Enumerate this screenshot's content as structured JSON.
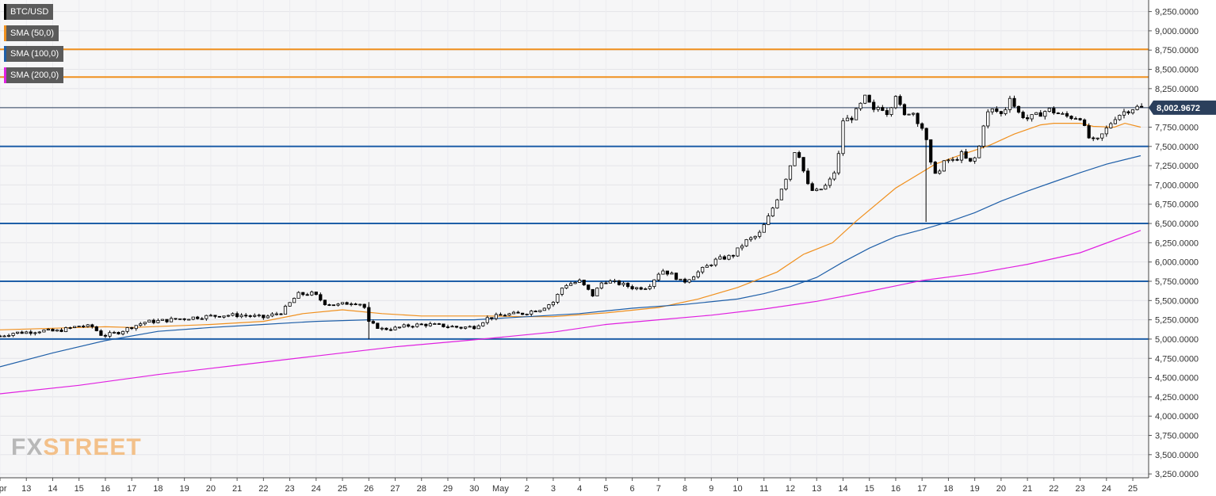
{
  "legend": [
    {
      "label": "BTC/USD",
      "color": "#000000"
    },
    {
      "label": "SMA (50,0)",
      "color": "#f0901e"
    },
    {
      "label": "SMA (100,0)",
      "color": "#1f5fa8"
    },
    {
      "label": "SMA (200,0)",
      "color": "#e020e0"
    }
  ],
  "logo": {
    "part1": "FX",
    "part2": "STREET"
  },
  "chart_data": {
    "type": "candlestick",
    "title": "BTC/USD",
    "ylim": [
      3200,
      9400
    ],
    "y_ticks": [
      3250,
      3500,
      3750,
      4000,
      4250,
      4500,
      4750,
      5000,
      5250,
      5500,
      5750,
      6000,
      6250,
      6500,
      6750,
      7000,
      7250,
      7500,
      7750,
      8000,
      8250,
      8500,
      8750,
      9000,
      9250
    ],
    "y_tick_labels": [
      "3,250.0000",
      "3,500.0000",
      "3,750.0000",
      "4,000.0000",
      "4,250.0000",
      "4,500.0000",
      "4,750.0000",
      "5,000.0000",
      "5,250.0000",
      "5,500.0000",
      "5,750.0000",
      "6,000.0000",
      "6,250.0000",
      "6,500.0000",
      "6,750.0000",
      "7,000.0000",
      "7,250.0000",
      "7,500.0000",
      "7,750.0000",
      "8,000.0000",
      "8,250.0000",
      "8,500.0000",
      "8,750.0000",
      "9,000.0000",
      "9,250.0000"
    ],
    "x_ticks": [
      {
        "label": "Apr",
        "day": 12
      },
      {
        "label": "13",
        "day": 13
      },
      {
        "label": "14",
        "day": 14
      },
      {
        "label": "15",
        "day": 15
      },
      {
        "label": "16",
        "day": 16
      },
      {
        "label": "17",
        "day": 17
      },
      {
        "label": "18",
        "day": 18
      },
      {
        "label": "19",
        "day": 19
      },
      {
        "label": "20",
        "day": 20
      },
      {
        "label": "21",
        "day": 21
      },
      {
        "label": "22",
        "day": 22
      },
      {
        "label": "23",
        "day": 23
      },
      {
        "label": "24",
        "day": 24
      },
      {
        "label": "25",
        "day": 25
      },
      {
        "label": "26",
        "day": 26
      },
      {
        "label": "27",
        "day": 27
      },
      {
        "label": "28",
        "day": 28
      },
      {
        "label": "29",
        "day": 29
      },
      {
        "label": "30",
        "day": 30
      },
      {
        "label": "May",
        "day": 31
      },
      {
        "label": "2",
        "day": 32
      },
      {
        "label": "3",
        "day": 33
      },
      {
        "label": "4",
        "day": 34
      },
      {
        "label": "5",
        "day": 35
      },
      {
        "label": "6",
        "day": 36
      },
      {
        "label": "7",
        "day": 37
      },
      {
        "label": "8",
        "day": 38
      },
      {
        "label": "9",
        "day": 39
      },
      {
        "label": "10",
        "day": 40
      },
      {
        "label": "11",
        "day": 41
      },
      {
        "label": "12",
        "day": 42
      },
      {
        "label": "13",
        "day": 43
      },
      {
        "label": "14",
        "day": 44
      },
      {
        "label": "15",
        "day": 45
      },
      {
        "label": "16",
        "day": 46
      },
      {
        "label": "17",
        "day": 47
      },
      {
        "label": "18",
        "day": 48
      },
      {
        "label": "19",
        "day": 49
      },
      {
        "label": "20",
        "day": 50
      },
      {
        "label": "21",
        "day": 51
      },
      {
        "label": "22",
        "day": 52
      },
      {
        "label": "23",
        "day": 53
      },
      {
        "label": "24",
        "day": 54
      },
      {
        "label": "25",
        "day": 55
      }
    ],
    "x_range": [
      12.0,
      55.6
    ],
    "current_price": 8002.9672,
    "current_price_label": "8,002.9672",
    "horizontal_levels": [
      {
        "value": 8760,
        "color": "#f0901e"
      },
      {
        "value": 8400,
        "color": "#f0901e"
      },
      {
        "value": 7500,
        "color": "#1f5fa8"
      },
      {
        "value": 6500,
        "color": "#1f5fa8"
      },
      {
        "value": 5750,
        "color": "#1f5fa8"
      },
      {
        "value": 5000,
        "color": "#1f5fa8"
      }
    ],
    "close_anchors": [
      [
        12.0,
        5040
      ],
      [
        12.5,
        5080
      ],
      [
        13.0,
        5090
      ],
      [
        13.6,
        5110
      ],
      [
        14.1,
        5100
      ],
      [
        14.5,
        5130
      ],
      [
        15.0,
        5170
      ],
      [
        15.5,
        5160
      ],
      [
        15.9,
        5040
      ],
      [
        16.5,
        5090
      ],
      [
        17.0,
        5160
      ],
      [
        17.5,
        5220
      ],
      [
        18.2,
        5240
      ],
      [
        19.0,
        5270
      ],
      [
        19.7,
        5290
      ],
      [
        20.5,
        5310
      ],
      [
        21.2,
        5310
      ],
      [
        22.0,
        5280
      ],
      [
        22.7,
        5350
      ],
      [
        23.3,
        5580
      ],
      [
        23.9,
        5590
      ],
      [
        24.3,
        5470
      ],
      [
        24.8,
        5440
      ],
      [
        25.4,
        5480
      ],
      [
        25.8,
        5450
      ],
      [
        26.0,
        5210
      ],
      [
        26.5,
        5130
      ],
      [
        27.0,
        5140
      ],
      [
        27.6,
        5180
      ],
      [
        28.2,
        5190
      ],
      [
        28.9,
        5170
      ],
      [
        29.5,
        5150
      ],
      [
        30.0,
        5160
      ],
      [
        30.5,
        5270
      ],
      [
        31.2,
        5320
      ],
      [
        31.8,
        5330
      ],
      [
        32.5,
        5390
      ],
      [
        33.0,
        5480
      ],
      [
        33.4,
        5700
      ],
      [
        34.0,
        5750
      ],
      [
        34.5,
        5570
      ],
      [
        34.9,
        5760
      ],
      [
        35.5,
        5720
      ],
      [
        36.1,
        5660
      ],
      [
        36.6,
        5680
      ],
      [
        37.1,
        5900
      ],
      [
        37.6,
        5820
      ],
      [
        37.9,
        5730
      ],
      [
        38.2,
        5800
      ],
      [
        38.6,
        5890
      ],
      [
        39.2,
        6030
      ],
      [
        39.8,
        6080
      ],
      [
        40.3,
        6270
      ],
      [
        40.8,
        6350
      ],
      [
        41.2,
        6600
      ],
      [
        41.5,
        6830
      ],
      [
        41.9,
        7150
      ],
      [
        42.2,
        7480
      ],
      [
        42.4,
        7340
      ],
      [
        42.6,
        7020
      ],
      [
        42.9,
        6900
      ],
      [
        43.3,
        6970
      ],
      [
        43.6,
        7100
      ],
      [
        43.8,
        7300
      ],
      [
        44.0,
        7840
      ],
      [
        44.3,
        7860
      ],
      [
        44.6,
        8000
      ],
      [
        44.9,
        8170
      ],
      [
        45.1,
        7930
      ],
      [
        45.4,
        8030
      ],
      [
        45.7,
        7930
      ],
      [
        46.0,
        8180
      ],
      [
        46.3,
        7880
      ],
      [
        46.6,
        7980
      ],
      [
        46.9,
        7790
      ],
      [
        47.1,
        7700
      ],
      [
        47.3,
        7280
      ],
      [
        47.6,
        7130
      ],
      [
        47.9,
        7330
      ],
      [
        48.2,
        7310
      ],
      [
        48.5,
        7400
      ],
      [
        48.8,
        7280
      ],
      [
        49.1,
        7380
      ],
      [
        49.4,
        7910
      ],
      [
        49.7,
        7980
      ],
      [
        50.1,
        7900
      ],
      [
        50.3,
        8180
      ],
      [
        50.6,
        7950
      ],
      [
        51.0,
        7860
      ],
      [
        51.4,
        7910
      ],
      [
        51.8,
        7980
      ],
      [
        52.2,
        7920
      ],
      [
        52.6,
        7880
      ],
      [
        53.0,
        7880
      ],
      [
        53.3,
        7620
      ],
      [
        53.6,
        7550
      ],
      [
        53.9,
        7680
      ],
      [
        54.3,
        7870
      ],
      [
        54.6,
        7940
      ],
      [
        54.9,
        7980
      ],
      [
        55.1,
        8010
      ],
      [
        55.3,
        8003
      ]
    ],
    "sma_series": [
      {
        "name": "SMA (50,0)",
        "color": "#f0901e",
        "points": [
          [
            12.0,
            5120
          ],
          [
            14.0,
            5140
          ],
          [
            16.0,
            5160
          ],
          [
            17.0,
            5150
          ],
          [
            20.0,
            5190
          ],
          [
            22.0,
            5230
          ],
          [
            23.5,
            5330
          ],
          [
            25.0,
            5380
          ],
          [
            26.5,
            5330
          ],
          [
            28.0,
            5300
          ],
          [
            30.5,
            5300
          ],
          [
            32.0,
            5290
          ],
          [
            33.0,
            5290
          ],
          [
            35.0,
            5340
          ],
          [
            37.0,
            5410
          ],
          [
            38.5,
            5520
          ],
          [
            40.0,
            5670
          ],
          [
            41.5,
            5870
          ],
          [
            42.5,
            6100
          ],
          [
            43.6,
            6250
          ],
          [
            44.5,
            6530
          ],
          [
            46.0,
            6960
          ],
          [
            47.5,
            7270
          ],
          [
            48.3,
            7370
          ],
          [
            49.0,
            7450
          ],
          [
            49.6,
            7520
          ],
          [
            50.5,
            7660
          ],
          [
            51.5,
            7780
          ],
          [
            52.0,
            7800
          ],
          [
            53.0,
            7800
          ],
          [
            53.5,
            7760
          ],
          [
            54.3,
            7750
          ],
          [
            54.7,
            7800
          ],
          [
            55.3,
            7750
          ]
        ]
      },
      {
        "name": "SMA (100,0)",
        "color": "#1f5fa8",
        "points": [
          [
            12.0,
            4640
          ],
          [
            14.0,
            4820
          ],
          [
            16.0,
            4980
          ],
          [
            18.0,
            5100
          ],
          [
            20.0,
            5150
          ],
          [
            22.0,
            5190
          ],
          [
            24.0,
            5230
          ],
          [
            26.0,
            5250
          ],
          [
            28.0,
            5250
          ],
          [
            30.0,
            5250
          ],
          [
            32.0,
            5290
          ],
          [
            34.0,
            5330
          ],
          [
            36.0,
            5400
          ],
          [
            38.0,
            5450
          ],
          [
            40.0,
            5520
          ],
          [
            41.0,
            5590
          ],
          [
            42.0,
            5680
          ],
          [
            43.0,
            5800
          ],
          [
            44.0,
            6000
          ],
          [
            45.0,
            6180
          ],
          [
            46.0,
            6330
          ],
          [
            47.0,
            6420
          ],
          [
            48.0,
            6520
          ],
          [
            49.0,
            6640
          ],
          [
            50.0,
            6790
          ],
          [
            51.0,
            6920
          ],
          [
            52.0,
            7040
          ],
          [
            53.0,
            7160
          ],
          [
            54.0,
            7270
          ],
          [
            55.3,
            7380
          ]
        ]
      },
      {
        "name": "SMA (200,0)",
        "color": "#e020e0",
        "points": [
          [
            12.0,
            4290
          ],
          [
            15.0,
            4400
          ],
          [
            18.0,
            4540
          ],
          [
            21.0,
            4660
          ],
          [
            24.0,
            4780
          ],
          [
            27.0,
            4900
          ],
          [
            30.0,
            4990
          ],
          [
            33.0,
            5090
          ],
          [
            35.0,
            5190
          ],
          [
            37.0,
            5250
          ],
          [
            39.0,
            5310
          ],
          [
            41.0,
            5390
          ],
          [
            43.0,
            5490
          ],
          [
            45.0,
            5620
          ],
          [
            47.0,
            5760
          ],
          [
            49.0,
            5850
          ],
          [
            51.0,
            5970
          ],
          [
            53.0,
            6120
          ],
          [
            55.3,
            6410
          ]
        ]
      }
    ]
  }
}
